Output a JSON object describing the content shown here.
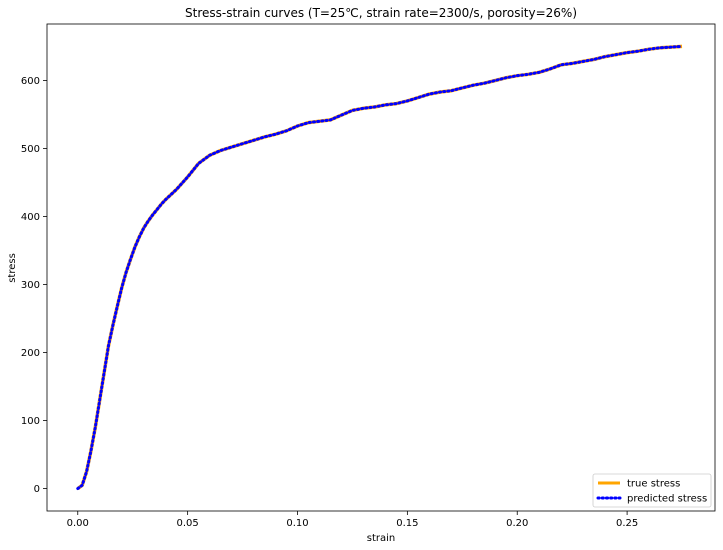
{
  "chart_data": {
    "type": "line",
    "title": "Stress-strain curves (T=25℃, strain rate=2300/s, porosity=26%)",
    "xlabel": "strain",
    "ylabel": "stress",
    "xlim": [
      -0.014,
      0.29
    ],
    "ylim": [
      -33,
      683
    ],
    "xticks": [
      0.0,
      0.05,
      0.1,
      0.15,
      0.2,
      0.25
    ],
    "xtick_labels": [
      "0.00",
      "0.05",
      "0.10",
      "0.15",
      "0.20",
      "0.25"
    ],
    "yticks": [
      0,
      100,
      200,
      300,
      400,
      500,
      600
    ],
    "ytick_labels": [
      "0",
      "100",
      "200",
      "300",
      "400",
      "500",
      "600"
    ],
    "grid": false,
    "legend_position": "lower-right",
    "series": [
      {
        "name": "true stress",
        "color": "#FFA500",
        "style": "solid",
        "x": [
          0.0,
          0.002,
          0.004,
          0.006,
          0.008,
          0.01,
          0.012,
          0.014,
          0.016,
          0.018,
          0.02,
          0.022,
          0.024,
          0.026,
          0.028,
          0.03,
          0.032,
          0.034,
          0.036,
          0.038,
          0.04,
          0.045,
          0.05,
          0.055,
          0.06,
          0.065,
          0.07,
          0.075,
          0.08,
          0.085,
          0.09,
          0.095,
          0.1,
          0.105,
          0.11,
          0.115,
          0.12,
          0.125,
          0.13,
          0.135,
          0.14,
          0.145,
          0.15,
          0.155,
          0.16,
          0.165,
          0.17,
          0.175,
          0.18,
          0.185,
          0.19,
          0.195,
          0.2,
          0.205,
          0.21,
          0.215,
          0.22,
          0.225,
          0.23,
          0.235,
          0.24,
          0.245,
          0.25,
          0.255,
          0.26,
          0.265,
          0.27,
          0.275
        ],
        "y": [
          0,
          5,
          25,
          55,
          90,
          130,
          170,
          210,
          240,
          268,
          295,
          318,
          337,
          355,
          370,
          383,
          393,
          402,
          410,
          418,
          425,
          440,
          458,
          478,
          490,
          497,
          502,
          507,
          512,
          517,
          521,
          526,
          533,
          538,
          540,
          542,
          549,
          556,
          559,
          561,
          564,
          566,
          570,
          575,
          580,
          583,
          585,
          589,
          593,
          596,
          600,
          604,
          607,
          609,
          612,
          617,
          623,
          625,
          628,
          631,
          635,
          638,
          641,
          643,
          646,
          648,
          649,
          650
        ]
      },
      {
        "name": "predicted stress",
        "color": "#0000FF",
        "style": "dotted",
        "x": [
          0.0,
          0.002,
          0.004,
          0.006,
          0.008,
          0.01,
          0.012,
          0.014,
          0.016,
          0.018,
          0.02,
          0.022,
          0.024,
          0.026,
          0.028,
          0.03,
          0.032,
          0.034,
          0.036,
          0.038,
          0.04,
          0.045,
          0.05,
          0.055,
          0.06,
          0.065,
          0.07,
          0.075,
          0.08,
          0.085,
          0.09,
          0.095,
          0.1,
          0.105,
          0.11,
          0.115,
          0.12,
          0.125,
          0.13,
          0.135,
          0.14,
          0.145,
          0.15,
          0.155,
          0.16,
          0.165,
          0.17,
          0.175,
          0.18,
          0.185,
          0.19,
          0.195,
          0.2,
          0.205,
          0.21,
          0.215,
          0.22,
          0.225,
          0.23,
          0.235,
          0.24,
          0.245,
          0.25,
          0.255,
          0.26,
          0.265,
          0.27,
          0.275
        ],
        "y": [
          0,
          5,
          25,
          55,
          90,
          130,
          170,
          210,
          240,
          268,
          295,
          318,
          337,
          355,
          370,
          383,
          393,
          402,
          410,
          418,
          425,
          440,
          458,
          478,
          490,
          497,
          502,
          507,
          512,
          517,
          521,
          526,
          533,
          538,
          540,
          542,
          549,
          556,
          559,
          561,
          564,
          566,
          570,
          575,
          580,
          583,
          585,
          589,
          593,
          596,
          600,
          604,
          607,
          609,
          612,
          617,
          623,
          625,
          628,
          631,
          635,
          638,
          641,
          643,
          646,
          648,
          649,
          650
        ]
      }
    ]
  }
}
